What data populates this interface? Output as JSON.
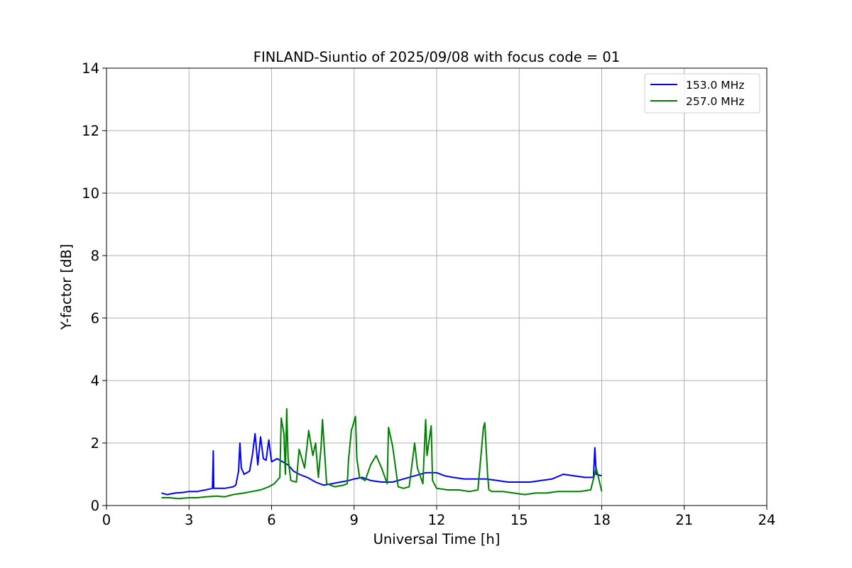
{
  "chart_data": {
    "type": "line",
    "title": "FINLAND-Siuntio of 2025/09/08 with focus code = 01",
    "xlabel": "Universal Time [h]",
    "ylabel": "Y-factor [dB]",
    "xlim": [
      0,
      24
    ],
    "ylim": [
      0,
      14
    ],
    "xticks": [
      0,
      3,
      6,
      9,
      12,
      15,
      18,
      21,
      24
    ],
    "yticks": [
      0,
      2,
      4,
      6,
      8,
      10,
      12,
      14
    ],
    "grid": true,
    "legend_position": "top-right",
    "series": [
      {
        "name": "153.0 MHz",
        "color": "#0000ff",
        "x": [
          2.0,
          2.2,
          2.5,
          2.8,
          3.0,
          3.3,
          3.6,
          3.85,
          3.88,
          3.9,
          4.0,
          4.3,
          4.6,
          4.7,
          4.8,
          4.85,
          4.9,
          5.0,
          5.2,
          5.3,
          5.4,
          5.5,
          5.6,
          5.7,
          5.8,
          5.9,
          6.0,
          6.2,
          6.4,
          6.6,
          6.8,
          7.0,
          7.3,
          7.6,
          7.9,
          8.2,
          8.5,
          8.8,
          9.0,
          9.3,
          9.6,
          10.0,
          10.4,
          10.8,
          11.2,
          11.6,
          12.0,
          12.3,
          12.6,
          13.0,
          13.4,
          13.8,
          14.2,
          14.6,
          15.0,
          15.4,
          15.8,
          16.2,
          16.6,
          17.0,
          17.4,
          17.7,
          17.75,
          17.8,
          18.0
        ],
        "y": [
          0.4,
          0.35,
          0.4,
          0.42,
          0.45,
          0.45,
          0.5,
          0.55,
          1.75,
          0.55,
          0.55,
          0.55,
          0.6,
          0.65,
          1.1,
          2.0,
          1.2,
          1.0,
          1.1,
          1.6,
          2.3,
          1.3,
          2.2,
          1.5,
          1.45,
          2.1,
          1.4,
          1.5,
          1.4,
          1.3,
          1.1,
          1.0,
          0.9,
          0.75,
          0.65,
          0.7,
          0.75,
          0.8,
          0.85,
          0.9,
          0.8,
          0.75,
          0.75,
          0.85,
          0.95,
          1.05,
          1.05,
          0.95,
          0.9,
          0.85,
          0.85,
          0.85,
          0.8,
          0.75,
          0.75,
          0.75,
          0.8,
          0.85,
          1.0,
          0.95,
          0.9,
          0.9,
          1.85,
          1.0,
          0.95
        ]
      },
      {
        "name": "257.0 MHz",
        "color": "#008000",
        "x": [
          2.0,
          2.3,
          2.6,
          3.0,
          3.3,
          3.6,
          4.0,
          4.3,
          4.6,
          5.0,
          5.3,
          5.6,
          5.9,
          6.1,
          6.3,
          6.35,
          6.45,
          6.5,
          6.55,
          6.6,
          6.7,
          6.9,
          7.0,
          7.2,
          7.35,
          7.5,
          7.6,
          7.7,
          7.8,
          7.85,
          8.0,
          8.3,
          8.6,
          8.75,
          8.8,
          8.9,
          9.05,
          9.1,
          9.2,
          9.4,
          9.6,
          9.8,
          10.0,
          10.2,
          10.25,
          10.4,
          10.6,
          10.8,
          11.0,
          11.2,
          11.3,
          11.5,
          11.6,
          11.65,
          11.8,
          11.85,
          12.0,
          12.4,
          12.8,
          13.2,
          13.5,
          13.7,
          13.75,
          13.85,
          13.9,
          14.0,
          14.4,
          14.8,
          15.2,
          15.6,
          16.0,
          16.4,
          16.8,
          17.2,
          17.6,
          17.8,
          18.0
        ],
        "y": [
          0.25,
          0.25,
          0.22,
          0.25,
          0.25,
          0.28,
          0.3,
          0.28,
          0.35,
          0.4,
          0.45,
          0.5,
          0.6,
          0.7,
          0.9,
          2.8,
          2.3,
          1.0,
          3.1,
          1.5,
          0.8,
          0.75,
          1.8,
          1.2,
          2.4,
          1.6,
          2.0,
          0.9,
          1.9,
          2.75,
          0.7,
          0.6,
          0.65,
          0.7,
          1.5,
          2.4,
          2.85,
          1.5,
          0.9,
          0.8,
          1.3,
          1.6,
          1.2,
          0.7,
          2.5,
          1.9,
          0.6,
          0.55,
          0.6,
          2.0,
          1.2,
          0.7,
          2.75,
          1.6,
          2.55,
          0.8,
          0.55,
          0.5,
          0.5,
          0.45,
          0.5,
          2.5,
          2.65,
          1.0,
          0.5,
          0.45,
          0.45,
          0.4,
          0.35,
          0.4,
          0.4,
          0.45,
          0.45,
          0.45,
          0.5,
          1.2,
          0.45
        ]
      }
    ]
  }
}
